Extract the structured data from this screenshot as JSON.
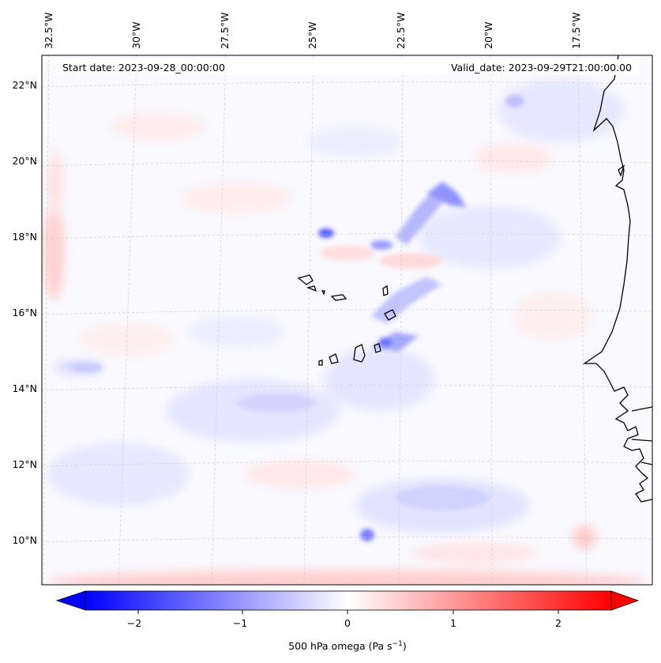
{
  "header": {
    "start_date": "Start date: 2023-09-28_00:00:00",
    "valid_date": "Valid_date: 2023-09-29T21:00:00.00"
  },
  "map": {
    "region": "Cabo Verde and West African coast, eastern tropical Atlantic",
    "lon_labels": [
      "32.5°W",
      "30°W",
      "27.5°W",
      "25°W",
      "22.5°W",
      "20°W",
      "17.5°W"
    ],
    "lat_labels": [
      "22°N",
      "20°N",
      "18°N",
      "16°N",
      "14°N",
      "12°N",
      "10°N"
    ],
    "gridlines": true,
    "field": "500 hPa vertical velocity (omega), filled contours",
    "colormap": "bwr"
  },
  "colorbar": {
    "ticks": [
      "−2",
      "−1",
      "0",
      "1",
      "2"
    ],
    "label": "500 hPa omega (Pa s",
    "label_sup": "−1",
    "label_close": ")",
    "min": -2.6,
    "max": 2.6,
    "extend": "both",
    "colors": {
      "low": "#0000ff",
      "mid": "#ffffff",
      "high": "#ff0000"
    }
  }
}
